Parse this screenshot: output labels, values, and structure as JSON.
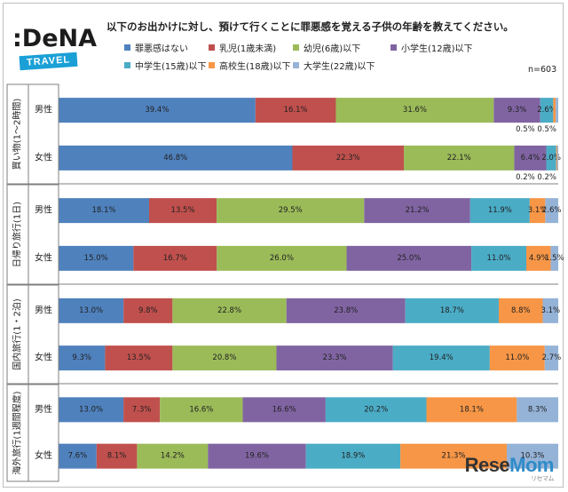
{
  "title": "以下のお出かけに対し、預けて行くことに罪悪感を覚える子供の年齢を教えてください。",
  "logo": {
    "main": ":DeNA",
    "sub": "TRAVEL"
  },
  "n_label": "n=603",
  "watermark": {
    "text_a": "Rese",
    "text_b": "Mom",
    "sub": "リセマム"
  },
  "chart_data": {
    "type": "bar",
    "orientation": "horizontal",
    "stacked": "percent",
    "xlim": [
      0,
      100
    ],
    "legend_position": "top",
    "series": [
      {
        "name": "罪悪感はない",
        "color": "#4f81bd"
      },
      {
        "name": "乳児(1歳未満)",
        "color": "#c0504d"
      },
      {
        "name": "幼児(6歳)以下",
        "color": "#9bbb59"
      },
      {
        "name": "小学生(12歳)以下",
        "color": "#8064a2"
      },
      {
        "name": "中学生(15歳)以下",
        "color": "#4bacc6"
      },
      {
        "name": "高校生(18歳)以下",
        "color": "#f79646"
      },
      {
        "name": "大学生(22歳)以下",
        "color": "#95b3d7"
      }
    ],
    "groups": [
      {
        "label": "買い物(1〜2時間)",
        "rows": [
          {
            "label": "男性",
            "values": [
              39.4,
              16.1,
              31.6,
              9.3,
              2.6,
              0.5,
              0.5
            ],
            "labels": [
              "39.4%",
              "16.1%",
              "31.6%",
              "9.3%",
              "2.6%",
              "",
              ""
            ],
            "below": "0.5% 0.5%"
          },
          {
            "label": "女性",
            "values": [
              46.8,
              22.3,
              22.1,
              6.4,
              2.0,
              0.2,
              0.2
            ],
            "labels": [
              "46.8%",
              "22.3%",
              "22.1%",
              "6.4%",
              "2.0%",
              "",
              ""
            ],
            "below": "0.2% 0.2%"
          }
        ]
      },
      {
        "label": "日帰り旅行(1日)",
        "rows": [
          {
            "label": "男性",
            "values": [
              18.1,
              13.5,
              29.5,
              21.2,
              11.9,
              3.1,
              2.6
            ],
            "labels": [
              "18.1%",
              "13.5%",
              "29.5%",
              "21.2%",
              "11.9%",
              "3.1%",
              "2.6%"
            ]
          },
          {
            "label": "女性",
            "values": [
              15.0,
              16.7,
              26.0,
              25.0,
              11.0,
              4.9,
              1.5
            ],
            "labels": [
              "15.0%",
              "16.7%",
              "26.0%",
              "25.0%",
              "11.0%",
              "4.9%",
              "1.5%"
            ]
          }
        ]
      },
      {
        "label": "国内旅行(1・2泊)",
        "rows": [
          {
            "label": "男性",
            "values": [
              13.0,
              9.8,
              22.8,
              23.8,
              18.7,
              8.8,
              3.1
            ],
            "labels": [
              "13.0%",
              "9.8%",
              "22.8%",
              "23.8%",
              "18.7%",
              "8.8%",
              "3.1%"
            ]
          },
          {
            "label": "女性",
            "values": [
              9.3,
              13.5,
              20.8,
              23.3,
              19.4,
              11.0,
              2.7
            ],
            "labels": [
              "9.3%",
              "13.5%",
              "20.8%",
              "23.3%",
              "19.4%",
              "11.0%",
              "2.7%"
            ]
          }
        ]
      },
      {
        "label": "海外旅行(1週間程度)",
        "rows": [
          {
            "label": "男性",
            "values": [
              13.0,
              7.3,
              16.6,
              16.6,
              20.2,
              18.1,
              8.3
            ],
            "labels": [
              "13.0%",
              "7.3%",
              "16.6%",
              "16.6%",
              "20.2%",
              "18.1%",
              "8.3%"
            ]
          },
          {
            "label": "女性",
            "values": [
              7.6,
              8.1,
              14.2,
              19.6,
              18.9,
              21.3,
              10.3
            ],
            "labels": [
              "7.6%",
              "8.1%",
              "14.2%",
              "19.6%",
              "18.9%",
              "21.3%",
              "10.3%"
            ]
          }
        ]
      }
    ]
  }
}
